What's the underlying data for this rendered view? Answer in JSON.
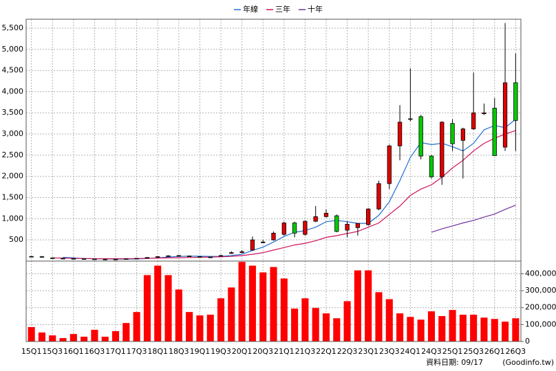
{
  "chart_data": {
    "type": "candlestick",
    "categories": [
      "15Q1",
      null,
      "15Q3",
      null,
      "16Q1",
      null,
      "16Q3",
      null,
      "17Q1",
      null,
      "17Q3",
      null,
      "18Q1",
      null,
      "18Q3",
      null,
      "19Q1",
      null,
      "19Q3",
      null,
      "20Q1",
      null,
      "20Q3",
      null,
      "21Q1",
      null,
      "21Q3",
      null,
      "22Q1",
      null,
      "22Q3",
      null,
      "23Q1",
      null,
      "23Q3",
      null,
      "24Q1",
      null,
      "24Q3",
      null,
      "25Q1",
      null,
      "25Q3",
      null,
      "26Q1",
      null,
      "26Q3"
    ],
    "open": [
      110,
      105,
      75,
      65,
      60,
      55,
      50,
      45,
      45,
      50,
      60,
      75,
      95,
      115,
      125,
      120,
      105,
      95,
      120,
      180,
      200,
      260,
      440,
      500,
      630,
      900,
      630,
      940,
      1050,
      1070,
      730,
      790,
      860,
      1230,
      1830,
      2720,
      3360,
      3410,
      2480,
      1990,
      3250,
      2850,
      3120,
      3480,
      3610,
      2690,
      4210
    ],
    "high": [
      125,
      120,
      85,
      75,
      70,
      65,
      60,
      55,
      55,
      60,
      70,
      90,
      110,
      135,
      145,
      130,
      115,
      105,
      150,
      230,
      260,
      580,
      500,
      700,
      930,
      930,
      960,
      1300,
      1220,
      1100,
      940,
      900,
      1250,
      1900,
      2750,
      3680,
      4550,
      3450,
      2500,
      3300,
      3350,
      3150,
      4450,
      3720,
      3850,
      5620,
      4900
    ],
    "low": [
      95,
      90,
      60,
      55,
      50,
      45,
      40,
      35,
      35,
      40,
      50,
      65,
      85,
      105,
      115,
      100,
      90,
      80,
      110,
      170,
      190,
      240,
      420,
      480,
      600,
      560,
      600,
      920,
      1030,
      680,
      560,
      600,
      840,
      1200,
      1700,
      2380,
      3300,
      2400,
      1950,
      1800,
      2600,
      1950,
      3100,
      3450,
      2490,
      2600,
      2600
    ],
    "close": [
      100,
      100,
      70,
      60,
      55,
      50,
      45,
      40,
      40,
      55,
      65,
      85,
      105,
      125,
      130,
      110,
      100,
      90,
      130,
      200,
      220,
      500,
      450,
      660,
      900,
      660,
      940,
      1050,
      1130,
      700,
      870,
      890,
      1230,
      1830,
      2720,
      3280,
      3350,
      2480,
      1990,
      3280,
      2770,
      3120,
      3500,
      3500,
      2490,
      4210,
      3320
    ],
    "candle_colors": {
      "up": "#e00000",
      "down": "#00cc00"
    },
    "ylim": [
      0,
      5710
    ],
    "yticks": [
      500,
      {
        "value": 1000,
        "label": "1,000"
      },
      {
        "value": 1500,
        "label": "1,500"
      },
      {
        "value": 2000,
        "label": "2,000"
      },
      {
        "value": 2500,
        "label": "2,500"
      },
      {
        "value": 3000,
        "label": "3,000"
      },
      {
        "value": 3500,
        "label": "3,500"
      },
      {
        "value": 4000,
        "label": "4,000"
      },
      {
        "value": 4500,
        "label": "4,500"
      },
      {
        "value": 5000,
        "label": "5,000"
      },
      {
        "value": 5500,
        "label": "5,500"
      }
    ],
    "series": [
      {
        "name": "年線",
        "color": "#1f6fd0",
        "values": [
          null,
          null,
          null,
          90,
          75,
          60,
          55,
          50,
          45,
          45,
          50,
          60,
          75,
          95,
          110,
          115,
          115,
          110,
          110,
          130,
          160,
          250,
          330,
          450,
          580,
          680,
          720,
          800,
          930,
          960,
          930,
          890,
          890,
          1080,
          1400,
          1900,
          2450,
          2800,
          2750,
          2780,
          2700,
          2600,
          2780,
          3100,
          3200,
          3150,
          3350
        ]
      },
      {
        "name": "三年",
        "color": "#d0105a",
        "values": [
          null,
          null,
          75,
          70,
          65,
          60,
          55,
          55,
          55,
          55,
          60,
          65,
          70,
          75,
          80,
          85,
          90,
          95,
          100,
          110,
          130,
          160,
          200,
          260,
          320,
          380,
          420,
          480,
          560,
          600,
          650,
          700,
          800,
          900,
          1100,
          1300,
          1550,
          1700,
          1800,
          1980,
          2200,
          2380,
          2600,
          2780,
          2900,
          3000,
          3080
        ]
      },
      {
        "name": "十年",
        "color": "#7030a0",
        "values": [
          null,
          null,
          null,
          null,
          null,
          null,
          null,
          null,
          null,
          null,
          null,
          null,
          null,
          null,
          null,
          null,
          null,
          null,
          null,
          null,
          null,
          null,
          null,
          null,
          null,
          null,
          null,
          null,
          null,
          null,
          null,
          null,
          null,
          null,
          null,
          null,
          null,
          null,
          680,
          760,
          830,
          900,
          960,
          1040,
          1110,
          1220,
          1320
        ]
      }
    ],
    "volume": {
      "color": "#ff0000",
      "values": [
        85000,
        53000,
        36000,
        20000,
        44000,
        28000,
        69000,
        28000,
        61000,
        109000,
        174000,
        392000,
        448000,
        392000,
        307000,
        174000,
        154000,
        158000,
        255000,
        319000,
        470000,
        448000,
        408000,
        440000,
        372000,
        194000,
        255000,
        198000,
        166000,
        137000,
        238000,
        420000,
        420000,
        291000,
        250000,
        166000,
        145000,
        129000,
        178000,
        150000,
        186000,
        158000,
        158000,
        141000,
        133000,
        117000,
        137000
      ],
      "y2lim": [
        0,
        475000
      ],
      "y2ticks": [
        0,
        {
          "value": 100000,
          "label": "100,000"
        },
        {
          "value": 200000,
          "label": "200,000"
        },
        {
          "value": 300000,
          "label": "300,000"
        },
        {
          "value": 400000,
          "label": "400,000"
        }
      ]
    },
    "grid": true
  },
  "footer": {
    "date": "資料日期: 09/17",
    "source": "(Goodinfo.tw)"
  }
}
